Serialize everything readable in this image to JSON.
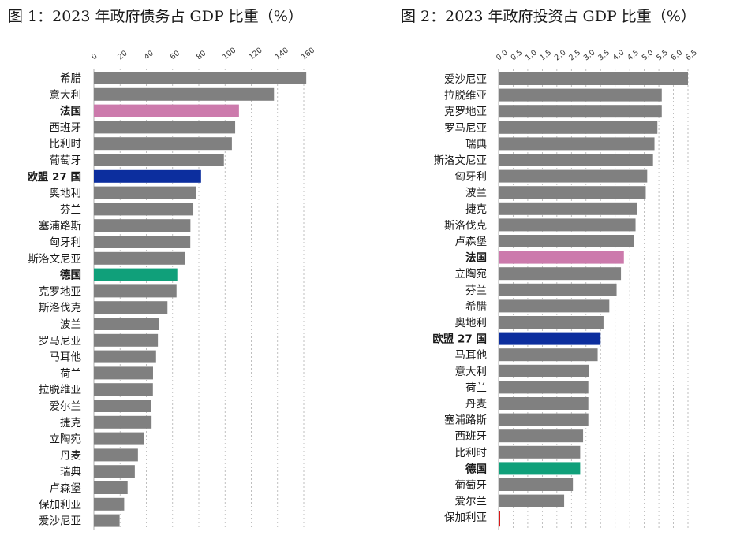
{
  "colors": {
    "default_bar": "#808080",
    "france": "#cc7aac",
    "eu27": "#0c2e9e",
    "germany": "#10a07a",
    "bulgaria_bar": "#d81818"
  },
  "chart_data": [
    {
      "type": "bar",
      "orientation": "horizontal",
      "title": "图 1：2023 年政府债务占 GDP 比重（%）",
      "xlabel": "",
      "ylabel": "",
      "xlim": [
        0,
        160
      ],
      "ticks": [
        "0",
        "20",
        "40",
        "60",
        "80",
        "100",
        "120",
        "140",
        "160"
      ],
      "tick_values": [
        0,
        20,
        40,
        60,
        80,
        100,
        120,
        140,
        160
      ],
      "grid": true,
      "categories": [
        "希腊",
        "意大利",
        "法国",
        "西班牙",
        "比利时",
        "葡萄牙",
        "欧盟 27 国",
        "奥地利",
        "芬兰",
        "塞浦路斯",
        "匈牙利",
        "斯洛文尼亚",
        "德国",
        "克罗地亚",
        "斯洛伐克",
        "波兰",
        "罗马尼亚",
        "马耳他",
        "荷兰",
        "拉脱维亚",
        "爱尔兰",
        "捷克",
        "立陶宛",
        "丹麦",
        "瑞典",
        "卢森堡",
        "保加利亚",
        "爱沙尼亚"
      ],
      "values": [
        161.9,
        137.3,
        110.6,
        107.7,
        105.2,
        99.1,
        81.7,
        77.8,
        75.8,
        73.6,
        73.5,
        69.2,
        63.6,
        63.0,
        56.1,
        49.6,
        48.8,
        47.4,
        45.1,
        45.0,
        43.7,
        44.0,
        38.3,
        33.6,
        31.2,
        25.7,
        23.1,
        19.6
      ],
      "highlight": {
        "法国": "france",
        "欧盟 27 国": "eu27",
        "德国": "germany"
      },
      "bold_labels": [
        "法国",
        "欧盟 27 国",
        "德国"
      ]
    },
    {
      "type": "bar",
      "orientation": "horizontal",
      "title": "图 2：2023 年政府投资占 GDP 比重（%）",
      "xlabel": "",
      "ylabel": "",
      "xlim": [
        0,
        6.5
      ],
      "ticks": [
        "0.0",
        "0.5",
        "1.0",
        "1.5",
        "2.0",
        "2.5",
        "3.0",
        "3.5",
        "4.0",
        "4.5",
        "5.0",
        "5.5",
        "6.0",
        "6.5"
      ],
      "tick_values": [
        0,
        0.5,
        1,
        1.5,
        2,
        2.5,
        3,
        3.5,
        4,
        4.5,
        5,
        5.5,
        6,
        6.5
      ],
      "grid": true,
      "categories": [
        "爱沙尼亚",
        "拉脱维亚",
        "克罗地亚",
        "罗马尼亚",
        "瑞典",
        "斯洛文尼亚",
        "匈牙利",
        "波兰",
        "捷克",
        "斯洛伐克",
        "卢森堡",
        "法国",
        "立陶宛",
        "芬兰",
        "希腊",
        "奥地利",
        "欧盟 27 国",
        "马耳他",
        "意大利",
        "荷兰",
        "丹麦",
        "塞浦路斯",
        "西班牙",
        "比利时",
        "德国",
        "葡萄牙",
        "爱尔兰",
        "保加利亚"
      ],
      "values": [
        6.5,
        5.6,
        5.6,
        5.45,
        5.35,
        5.3,
        5.1,
        5.05,
        4.75,
        4.7,
        4.65,
        4.3,
        4.2,
        4.05,
        3.8,
        3.6,
        3.5,
        3.4,
        3.1,
        3.08,
        3.08,
        3.08,
        2.9,
        2.8,
        2.8,
        2.55,
        2.25,
        0.02
      ],
      "highlight": {
        "法国": "france",
        "欧盟 27 国": "eu27",
        "德国": "germany",
        "保加利亚": "bulgaria_bar"
      },
      "bold_labels": [
        "法国",
        "欧盟 27 国",
        "德国"
      ]
    }
  ]
}
